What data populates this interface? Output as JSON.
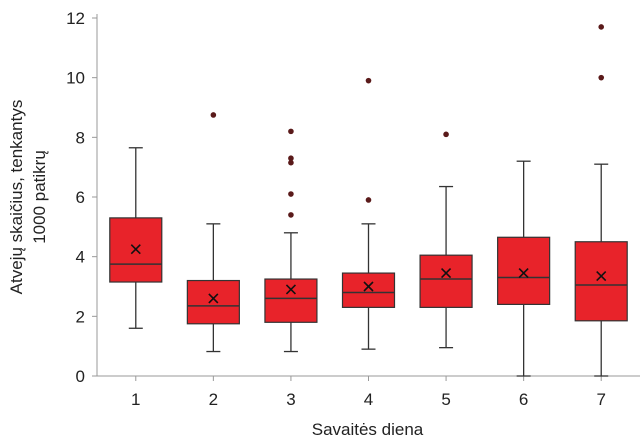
{
  "chart_data": {
    "type": "box",
    "xlabel": "Savaitės diena",
    "ylabel_lines": [
      "Atvejų skaičius, tenkantys",
      "1000 patikrų"
    ],
    "ylim": [
      0,
      12
    ],
    "yticks": [
      0,
      2,
      4,
      6,
      8,
      10,
      12
    ],
    "grid": false,
    "legend": "none",
    "categories": [
      "1",
      "2",
      "3",
      "4",
      "5",
      "6",
      "7"
    ],
    "boxes": [
      {
        "category": "1",
        "min": 1.6,
        "q1": 3.15,
        "median": 3.75,
        "q3": 5.3,
        "max": 7.65,
        "mean": 4.25,
        "outliers": []
      },
      {
        "category": "2",
        "min": 0.82,
        "q1": 1.75,
        "median": 2.35,
        "q3": 3.2,
        "max": 5.1,
        "mean": 2.6,
        "outliers": [
          8.75
        ]
      },
      {
        "category": "3",
        "min": 0.82,
        "q1": 1.8,
        "median": 2.6,
        "q3": 3.25,
        "max": 4.8,
        "mean": 2.9,
        "outliers": [
          5.4,
          6.1,
          7.15,
          7.3,
          8.2
        ]
      },
      {
        "category": "4",
        "min": 0.9,
        "q1": 2.3,
        "median": 2.8,
        "q3": 3.45,
        "max": 5.1,
        "mean": 3.0,
        "outliers": [
          5.9,
          9.9
        ]
      },
      {
        "category": "5",
        "min": 0.95,
        "q1": 2.3,
        "median": 3.25,
        "q3": 4.05,
        "max": 6.35,
        "mean": 3.45,
        "outliers": [
          8.1
        ]
      },
      {
        "category": "6",
        "min": 0.0,
        "q1": 2.4,
        "median": 3.3,
        "q3": 4.65,
        "max": 7.2,
        "mean": 3.45,
        "outliers": []
      },
      {
        "category": "7",
        "min": 0.0,
        "q1": 1.85,
        "median": 3.05,
        "q3": 4.5,
        "max": 7.1,
        "mean": 3.35,
        "outliers": [
          10.0,
          11.7
        ]
      }
    ],
    "colors": {
      "box_fill": "#e8232a",
      "box_edge": "#333333",
      "whisker": "#333333",
      "outlier": "#5a1a1a",
      "mean_marker": "#111111",
      "axis": "#999999"
    }
  }
}
